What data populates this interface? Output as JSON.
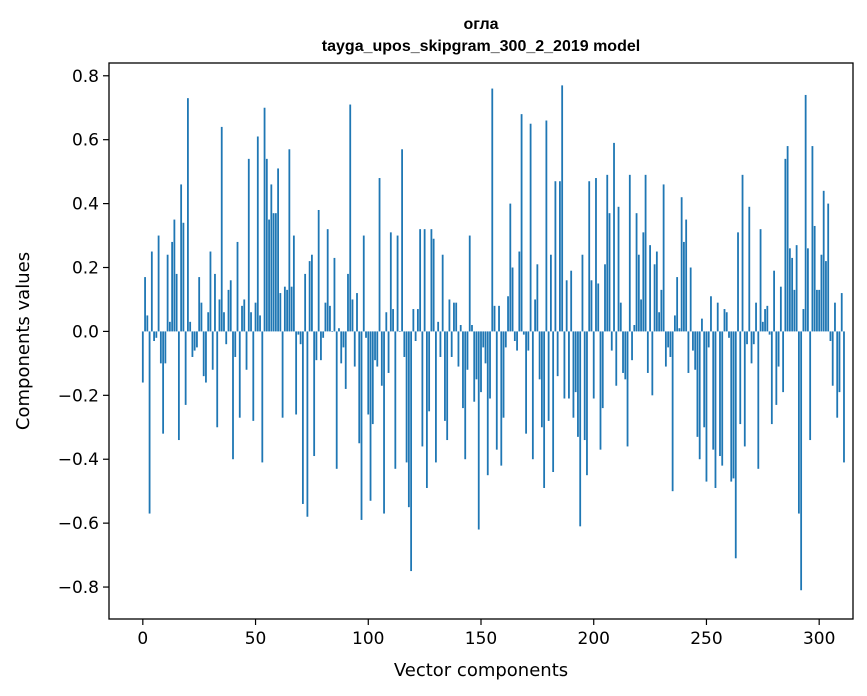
{
  "chart_data": {
    "type": "bar",
    "title_line1": "огла",
    "title_line2": "tayga_upos_skipgram_300_2_2019 model",
    "xlabel": "Vector components",
    "ylabel": "Components values",
    "xlim": [
      -15,
      315
    ],
    "ylim": [
      -0.9,
      0.84
    ],
    "xticks": [
      0,
      50,
      100,
      150,
      200,
      250,
      300
    ],
    "xtick_labels": [
      "0",
      "50",
      "100",
      "150",
      "200",
      "250",
      "300"
    ],
    "yticks": [
      -0.8,
      -0.6,
      -0.4,
      -0.2,
      0.0,
      0.2,
      0.4,
      0.6,
      0.8
    ],
    "ytick_labels": [
      "−0.8",
      "−0.6",
      "−0.4",
      "−0.2",
      "0.0",
      "0.2",
      "0.4",
      "0.6",
      "0.8"
    ],
    "bar_color": "#1f77b4",
    "values": [
      -0.16,
      0.17,
      0.05,
      -0.57,
      0.25,
      -0.03,
      -0.02,
      0.3,
      -0.1,
      -0.32,
      -0.1,
      0.24,
      0.03,
      0.28,
      0.35,
      0.18,
      -0.34,
      0.46,
      0.34,
      -0.23,
      0.73,
      0.03,
      -0.08,
      -0.06,
      -0.05,
      0.17,
      0.09,
      -0.14,
      -0.16,
      0.06,
      0.25,
      -0.12,
      0.18,
      -0.3,
      0.1,
      0.64,
      0.06,
      -0.04,
      0.13,
      0.16,
      -0.4,
      -0.08,
      0.28,
      -0.27,
      0.08,
      0.1,
      -0.12,
      0.54,
      0.06,
      -0.28,
      0.09,
      0.61,
      0.05,
      -0.41,
      0.7,
      0.54,
      0.35,
      0.46,
      0.37,
      0.37,
      0.51,
      0.12,
      -0.27,
      0.14,
      0.13,
      0.57,
      0.14,
      0.3,
      -0.26,
      -0.01,
      -0.04,
      -0.54,
      0.18,
      -0.58,
      0.22,
      0.24,
      -0.39,
      -0.09,
      0.38,
      -0.09,
      -0.02,
      0.09,
      0.32,
      0.08,
      0.0,
      0.23,
      -0.43,
      0.01,
      -0.1,
      -0.05,
      -0.18,
      0.18,
      0.71,
      0.1,
      -0.11,
      0.12,
      -0.35,
      -0.59,
      0.3,
      -0.02,
      -0.26,
      -0.53,
      -0.29,
      -0.09,
      -0.11,
      0.48,
      -0.17,
      -0.57,
      0.06,
      -0.13,
      0.31,
      0.07,
      -0.43,
      0.3,
      0.0,
      0.57,
      -0.08,
      -0.41,
      -0.55,
      -0.75,
      0.07,
      -0.03,
      0.07,
      0.32,
      -0.36,
      0.32,
      -0.49,
      -0.25,
      0.32,
      0.29,
      -0.41,
      0.03,
      -0.08,
      0.24,
      -0.28,
      -0.34,
      0.1,
      -0.08,
      0.09,
      0.09,
      -0.11,
      0.02,
      -0.24,
      -0.4,
      -0.12,
      0.3,
      0.02,
      -0.22,
      -0.15,
      -0.62,
      -0.19,
      -0.05,
      -0.1,
      -0.45,
      -0.21,
      0.76,
      0.08,
      -0.37,
      0.08,
      -0.42,
      -0.27,
      -0.05,
      0.11,
      0.4,
      0.2,
      -0.03,
      -0.06,
      0.25,
      0.68,
      -0.01,
      -0.32,
      -0.06,
      0.65,
      -0.4,
      0.1,
      0.21,
      -0.15,
      -0.3,
      -0.49,
      0.66,
      -0.28,
      0.24,
      -0.44,
      0.47,
      -0.14,
      0.47,
      0.77,
      -0.21,
      0.16,
      -0.21,
      0.19,
      -0.27,
      -0.19,
      -0.33,
      -0.61,
      0.24,
      -0.34,
      -0.45,
      0.47,
      0.16,
      -0.21,
      0.48,
      0.15,
      -0.37,
      -0.24,
      0.21,
      0.49,
      0.37,
      -0.06,
      0.59,
      -0.17,
      0.39,
      0.09,
      -0.13,
      -0.15,
      -0.36,
      0.49,
      -0.09,
      0.02,
      0.37,
      0.24,
      0.1,
      0.31,
      0.49,
      -0.13,
      0.27,
      -0.2,
      0.21,
      0.25,
      0.06,
      0.13,
      0.46,
      -0.11,
      -0.05,
      -0.08,
      -0.5,
      0.05,
      0.17,
      0.01,
      0.42,
      0.28,
      0.35,
      -0.13,
      0.2,
      -0.06,
      -0.12,
      -0.33,
      -0.4,
      0.04,
      -0.3,
      -0.47,
      -0.05,
      0.11,
      -0.37,
      -0.49,
      0.09,
      -0.39,
      -0.42,
      0.07,
      0.06,
      -0.02,
      -0.47,
      -0.46,
      -0.71,
      0.31,
      -0.29,
      0.49,
      -0.36,
      -0.04,
      0.39,
      -0.1,
      -0.04,
      0.09,
      -0.43,
      0.32,
      0.03,
      0.07,
      0.08,
      -0.01,
      -0.29,
      0.19,
      -0.23,
      -0.11,
      0.14,
      -0.19,
      0.54,
      0.58,
      0.26,
      0.23,
      0.13,
      0.27,
      -0.57,
      -0.81,
      0.07,
      0.74,
      0.26,
      -0.34,
      0.58,
      0.33,
      0.13,
      0.13,
      0.24,
      0.44,
      0.22,
      0.4,
      -0.03,
      -0.17,
      0.09,
      -0.27,
      -0.19,
      0.12,
      -0.41
    ]
  }
}
